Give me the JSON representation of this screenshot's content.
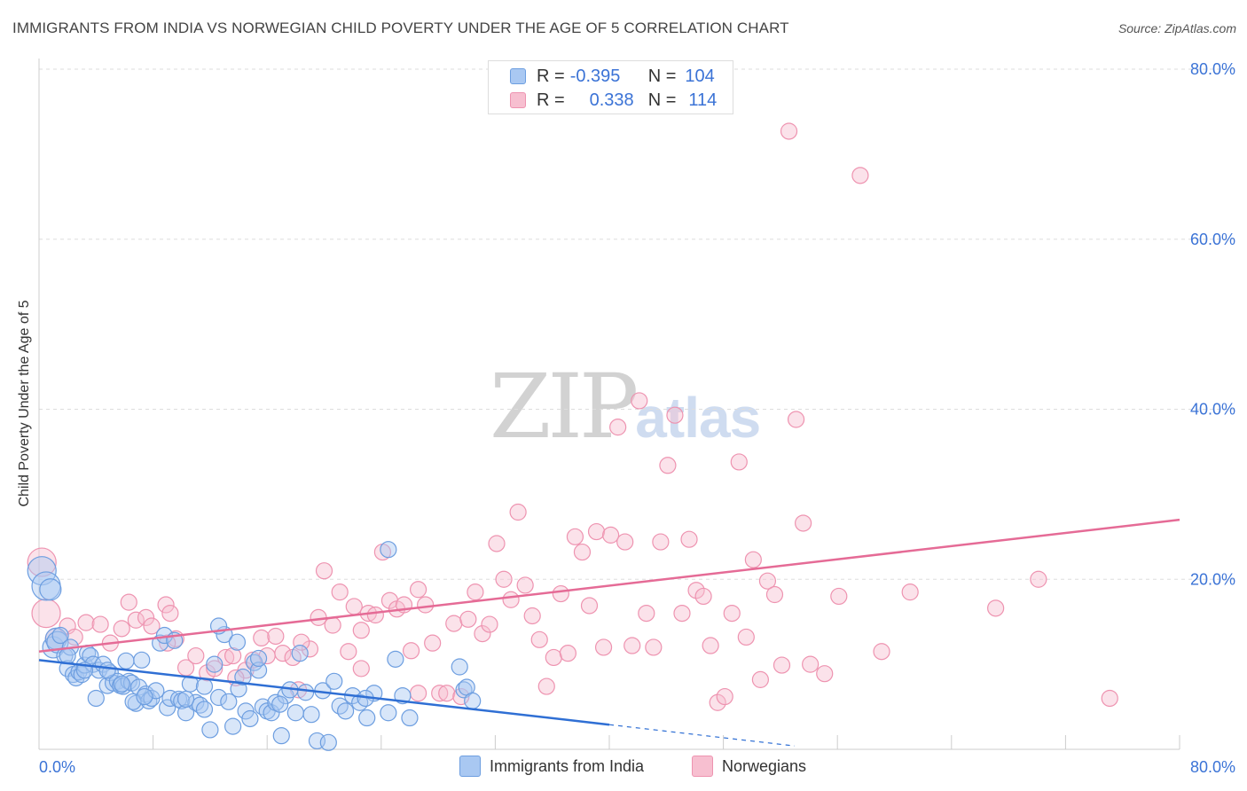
{
  "title": "IMMIGRANTS FROM INDIA VS NORWEGIAN CHILD POVERTY UNDER THE AGE OF 5 CORRELATION CHART",
  "source": "Source: ZipAtlas.com",
  "watermark": {
    "zip": "ZIP",
    "atlas": "atlas"
  },
  "legend_top": {
    "rows": [
      {
        "r_label": "R =",
        "r_value": "-0.395",
        "n_label": "N =",
        "n_value": "104"
      },
      {
        "r_label": "R =",
        "r_value": "0.338",
        "n_label": "N =",
        "n_value": "114"
      }
    ]
  },
  "legend_bottom": [
    "Immigrants from India",
    "Norwegians"
  ],
  "colors": {
    "blue_fill": "#a9c8f2",
    "blue_stroke": "#6d9ee0",
    "blue_line": "#2f6fd4",
    "pink_fill": "#f7bfd0",
    "pink_stroke": "#ee93b0",
    "pink_line": "#e56b96",
    "grid": "#dddddd",
    "axis_text": "#3b73d6"
  },
  "chart_data": {
    "type": "scatter",
    "title": "IMMIGRANTS FROM INDIA VS NORWEGIAN CHILD POVERTY UNDER THE AGE OF 5 CORRELATION CHART",
    "xlabel": "",
    "ylabel": "Child Poverty Under the Age of 5",
    "xlim": [
      0,
      80
    ],
    "ylim": [
      0,
      80
    ],
    "x_tick_labels": [
      "0.0%",
      "80.0%"
    ],
    "y_tick_labels": [
      "20.0%",
      "40.0%",
      "60.0%",
      "80.0%"
    ],
    "y_ticks": [
      20,
      40,
      60,
      80
    ],
    "grid": true,
    "legend": "top-center",
    "series": [
      {
        "name": "Immigrants from India",
        "R": -0.395,
        "N": 104,
        "trend": {
          "x0": 0,
          "y0": 10.5,
          "x1": 40,
          "y1": 2.9,
          "dash_to": [
            53,
            0.4
          ]
        },
        "points": [
          [
            0.2,
            21.0
          ],
          [
            0.5,
            19.2
          ],
          [
            0.8,
            18.8
          ],
          [
            1.0,
            12.0
          ],
          [
            1.2,
            13.0
          ],
          [
            1.3,
            12.6
          ],
          [
            1.5,
            13.4
          ],
          [
            1.8,
            11.0
          ],
          [
            2.0,
            9.5
          ],
          [
            2.2,
            12.0
          ],
          [
            2.4,
            8.8
          ],
          [
            2.6,
            8.4
          ],
          [
            2.8,
            9.1
          ],
          [
            3.0,
            8.8
          ],
          [
            3.2,
            9.9
          ],
          [
            3.4,
            11.3
          ],
          [
            3.6,
            11.0
          ],
          [
            3.8,
            10.0
          ],
          [
            4.0,
            6.0
          ],
          [
            4.2,
            9.3
          ],
          [
            4.5,
            10.0
          ],
          [
            4.8,
            7.5
          ],
          [
            5.0,
            9.0
          ],
          [
            5.2,
            7.8
          ],
          [
            5.5,
            8.0
          ],
          [
            5.7,
            7.5
          ],
          [
            5.9,
            7.4
          ],
          [
            6.1,
            10.4
          ],
          [
            6.3,
            8.0
          ],
          [
            6.5,
            7.8
          ],
          [
            6.8,
            5.4
          ],
          [
            7.0,
            7.3
          ],
          [
            7.2,
            10.5
          ],
          [
            7.5,
            6.5
          ],
          [
            7.7,
            5.7
          ],
          [
            7.9,
            6.0
          ],
          [
            8.2,
            6.9
          ],
          [
            8.5,
            12.5
          ],
          [
            8.8,
            13.4
          ],
          [
            9.0,
            4.9
          ],
          [
            9.2,
            6.0
          ],
          [
            9.5,
            12.8
          ],
          [
            9.8,
            5.9
          ],
          [
            10.0,
            5.7
          ],
          [
            10.3,
            4.3
          ],
          [
            10.6,
            7.7
          ],
          [
            11.0,
            5.5
          ],
          [
            11.3,
            5.2
          ],
          [
            11.6,
            7.4
          ],
          [
            12.0,
            2.3
          ],
          [
            12.3,
            10.0
          ],
          [
            12.6,
            6.1
          ],
          [
            13.0,
            13.5
          ],
          [
            13.3,
            5.6
          ],
          [
            13.6,
            2.7
          ],
          [
            14.0,
            7.1
          ],
          [
            14.3,
            8.5
          ],
          [
            14.5,
            4.5
          ],
          [
            14.8,
            3.6
          ],
          [
            15.1,
            10.2
          ],
          [
            15.4,
            9.3
          ],
          [
            15.7,
            5.0
          ],
          [
            16.0,
            4.5
          ],
          [
            16.3,
            4.3
          ],
          [
            16.6,
            5.5
          ],
          [
            17.0,
            1.6
          ],
          [
            17.3,
            6.3
          ],
          [
            17.6,
            7.0
          ],
          [
            18.0,
            4.3
          ],
          [
            18.3,
            11.3
          ],
          [
            18.7,
            6.7
          ],
          [
            19.1,
            4.1
          ],
          [
            19.5,
            1.0
          ],
          [
            19.9,
            6.9
          ],
          [
            20.3,
            0.8
          ],
          [
            20.7,
            8.0
          ],
          [
            21.1,
            5.1
          ],
          [
            21.5,
            4.5
          ],
          [
            22.0,
            6.3
          ],
          [
            22.5,
            5.5
          ],
          [
            23.0,
            3.7
          ],
          [
            23.5,
            6.6
          ],
          [
            24.5,
            4.3
          ],
          [
            25.0,
            10.6
          ],
          [
            25.5,
            6.3
          ],
          [
            26.0,
            3.7
          ],
          [
            29.5,
            9.7
          ],
          [
            29.8,
            7.0
          ],
          [
            30.0,
            7.3
          ],
          [
            30.4,
            5.7
          ],
          [
            2.0,
            11.0
          ],
          [
            3.2,
            9.3
          ],
          [
            4.8,
            9.3
          ],
          [
            5.8,
            7.7
          ],
          [
            6.6,
            5.6
          ],
          [
            7.4,
            6.2
          ],
          [
            12.6,
            14.5
          ],
          [
            13.9,
            12.6
          ],
          [
            16.9,
            5.3
          ],
          [
            22.9,
            6.0
          ],
          [
            24.5,
            23.5
          ],
          [
            15.4,
            10.7
          ],
          [
            11.6,
            4.7
          ],
          [
            10.3,
            5.9
          ]
        ]
      },
      {
        "name": "Norwegians",
        "R": 0.338,
        "N": 114,
        "trend": {
          "x0": 0,
          "y0": 11.5,
          "x1": 80,
          "y1": 27.0
        },
        "points": [
          [
            0.2,
            22.0
          ],
          [
            0.5,
            16.0
          ],
          [
            1.2,
            13.0
          ],
          [
            2.0,
            14.5
          ],
          [
            2.5,
            13.2
          ],
          [
            3.3,
            14.9
          ],
          [
            4.3,
            14.7
          ],
          [
            5.0,
            12.5
          ],
          [
            5.8,
            14.2
          ],
          [
            6.3,
            17.3
          ],
          [
            6.8,
            15.2
          ],
          [
            7.5,
            15.5
          ],
          [
            7.9,
            14.5
          ],
          [
            8.9,
            17.0
          ],
          [
            9.2,
            16.0
          ],
          [
            9.6,
            13.0
          ],
          [
            10.3,
            9.6
          ],
          [
            11.0,
            11.0
          ],
          [
            11.8,
            9.0
          ],
          [
            12.3,
            9.5
          ],
          [
            13.1,
            10.8
          ],
          [
            13.6,
            11.0
          ],
          [
            14.5,
            9.3
          ],
          [
            15.0,
            10.5
          ],
          [
            15.6,
            13.1
          ],
          [
            16.0,
            11.0
          ],
          [
            16.6,
            13.3
          ],
          [
            17.1,
            11.3
          ],
          [
            17.8,
            10.8
          ],
          [
            18.2,
            7.0
          ],
          [
            19.0,
            11.8
          ],
          [
            19.6,
            15.5
          ],
          [
            20.0,
            21.0
          ],
          [
            20.6,
            14.6
          ],
          [
            21.1,
            18.5
          ],
          [
            21.7,
            11.5
          ],
          [
            22.1,
            16.8
          ],
          [
            22.6,
            14.0
          ],
          [
            23.1,
            16.0
          ],
          [
            23.6,
            15.8
          ],
          [
            24.1,
            23.2
          ],
          [
            24.6,
            17.5
          ],
          [
            25.1,
            16.5
          ],
          [
            25.6,
            17.0
          ],
          [
            26.1,
            11.6
          ],
          [
            26.6,
            18.8
          ],
          [
            27.1,
            17.0
          ],
          [
            27.6,
            12.5
          ],
          [
            28.1,
            6.6
          ],
          [
            28.6,
            6.6
          ],
          [
            29.1,
            14.8
          ],
          [
            29.6,
            6.2
          ],
          [
            30.1,
            15.3
          ],
          [
            30.6,
            18.5
          ],
          [
            31.1,
            13.6
          ],
          [
            31.6,
            14.7
          ],
          [
            32.1,
            24.2
          ],
          [
            32.6,
            20.0
          ],
          [
            33.1,
            17.6
          ],
          [
            33.6,
            27.9
          ],
          [
            34.1,
            19.3
          ],
          [
            34.6,
            15.7
          ],
          [
            35.1,
            12.9
          ],
          [
            35.6,
            7.4
          ],
          [
            36.1,
            10.8
          ],
          [
            36.6,
            18.3
          ],
          [
            37.1,
            11.3
          ],
          [
            37.6,
            25.0
          ],
          [
            38.1,
            23.2
          ],
          [
            38.6,
            16.9
          ],
          [
            39.1,
            25.6
          ],
          [
            39.6,
            12.0
          ],
          [
            40.1,
            25.2
          ],
          [
            40.6,
            37.9
          ],
          [
            41.1,
            24.4
          ],
          [
            41.6,
            12.2
          ],
          [
            42.1,
            41.0
          ],
          [
            42.6,
            16.0
          ],
          [
            43.1,
            12.0
          ],
          [
            43.6,
            24.4
          ],
          [
            44.1,
            33.4
          ],
          [
            44.6,
            39.3
          ],
          [
            45.1,
            16.0
          ],
          [
            45.6,
            24.7
          ],
          [
            46.1,
            18.7
          ],
          [
            46.6,
            18.0
          ],
          [
            47.1,
            12.2
          ],
          [
            47.6,
            5.5
          ],
          [
            48.1,
            6.2
          ],
          [
            48.6,
            16.0
          ],
          [
            49.1,
            33.8
          ],
          [
            49.6,
            13.2
          ],
          [
            50.1,
            22.3
          ],
          [
            50.6,
            8.2
          ],
          [
            51.1,
            19.8
          ],
          [
            51.6,
            18.2
          ],
          [
            52.1,
            9.9
          ],
          [
            52.6,
            72.7
          ],
          [
            53.1,
            38.8
          ],
          [
            53.6,
            26.6
          ],
          [
            54.1,
            10.0
          ],
          [
            55.1,
            8.9
          ],
          [
            56.1,
            18.0
          ],
          [
            57.6,
            67.5
          ],
          [
            59.1,
            11.5
          ],
          [
            61.1,
            18.5
          ],
          [
            67.1,
            16.6
          ],
          [
            70.1,
            20.0
          ],
          [
            75.1,
            6.0
          ],
          [
            13.8,
            8.4
          ],
          [
            9.0,
            12.5
          ],
          [
            18.4,
            12.6
          ],
          [
            26.6,
            6.6
          ],
          [
            22.6,
            9.5
          ]
        ]
      }
    ]
  }
}
